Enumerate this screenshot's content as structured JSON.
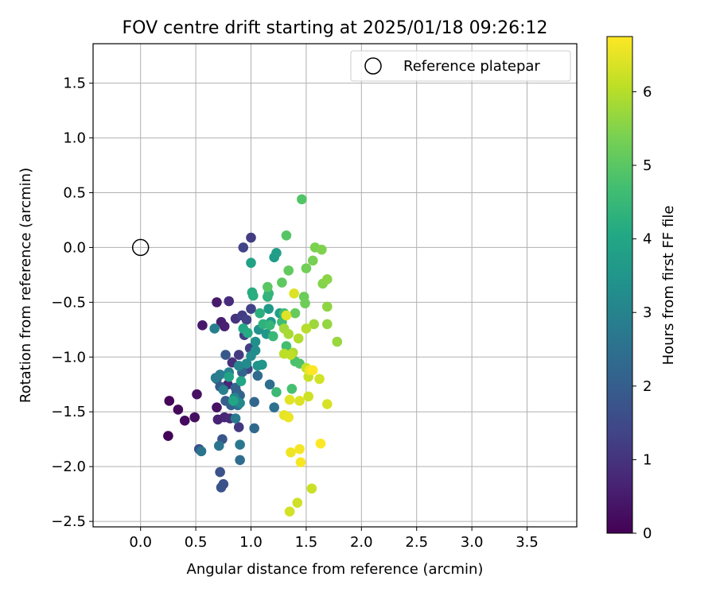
{
  "chart_data": {
    "type": "scatter",
    "title": "FOV centre drift starting at 2025/01/18 09:26:12",
    "xlabel": "Angular distance from reference (arcmin)",
    "ylabel": "Rotation from reference (arcmin)",
    "colorbar_label": "Hours from first FF file",
    "xlim": [
      -0.43,
      3.95
    ],
    "ylim": [
      -2.55,
      1.86
    ],
    "x_ticks": [
      0.0,
      0.5,
      1.0,
      1.5,
      2.0,
      2.5,
      3.0,
      3.5
    ],
    "x_tick_labels": [
      "0.0",
      "0.5",
      "1.0",
      "1.5",
      "2.0",
      "2.5",
      "3.0",
      "3.5"
    ],
    "y_ticks": [
      1.5,
      1.0,
      0.5,
      0.0,
      -0.5,
      -1.0,
      -1.5,
      -2.0,
      -2.5
    ],
    "y_tick_labels": [
      "1.5",
      "1.0",
      "0.5",
      "0.0",
      "−0.5",
      "−1.0",
      "−1.5",
      "−2.0",
      "−2.5"
    ],
    "colorbar_ticks": [
      0,
      1,
      2,
      3,
      4,
      5,
      6
    ],
    "colorbar_tick_labels": [
      "0",
      "1",
      "2",
      "3",
      "4",
      "5",
      "6"
    ],
    "color_range": [
      0,
      6.75
    ],
    "colormap": "viridis",
    "grid": true,
    "legend": {
      "placement": "top-right",
      "entries": [
        "Reference platepar"
      ]
    },
    "reference": {
      "x": 0.0,
      "y": 0.0
    },
    "points": [
      {
        "x": 0.25,
        "y": -1.72,
        "t": 0.05
      },
      {
        "x": 0.26,
        "y": -1.4,
        "t": 0.1
      },
      {
        "x": 0.34,
        "y": -1.48,
        "t": 0.15
      },
      {
        "x": 0.4,
        "y": -1.58,
        "t": 0.2
      },
      {
        "x": 0.49,
        "y": -1.55,
        "t": 0.25
      },
      {
        "x": 0.51,
        "y": -1.34,
        "t": 0.3
      },
      {
        "x": 0.69,
        "y": -1.46,
        "t": 0.35
      },
      {
        "x": 0.56,
        "y": -0.71,
        "t": 0.45
      },
      {
        "x": 0.69,
        "y": -0.5,
        "t": 0.5
      },
      {
        "x": 0.73,
        "y": -0.68,
        "t": 0.55
      },
      {
        "x": 0.76,
        "y": -0.72,
        "t": 0.6
      },
      {
        "x": 0.7,
        "y": -1.57,
        "t": 0.65
      },
      {
        "x": 0.76,
        "y": -1.55,
        "t": 0.7
      },
      {
        "x": 0.79,
        "y": -1.25,
        "t": 0.75
      },
      {
        "x": 0.81,
        "y": -1.56,
        "t": 0.8
      },
      {
        "x": 0.8,
        "y": -0.49,
        "t": 0.85
      },
      {
        "x": 0.83,
        "y": -1.05,
        "t": 0.9
      },
      {
        "x": 0.86,
        "y": -0.65,
        "t": 1.0
      },
      {
        "x": 0.87,
        "y": -1.32,
        "t": 1.05
      },
      {
        "x": 0.89,
        "y": -1.64,
        "t": 1.1
      },
      {
        "x": 0.89,
        "y": -0.98,
        "t": 1.15
      },
      {
        "x": 0.92,
        "y": -0.62,
        "t": 1.2
      },
      {
        "x": 0.94,
        "y": -0.8,
        "t": 1.25
      },
      {
        "x": 0.96,
        "y": -0.66,
        "t": 1.3
      },
      {
        "x": 0.93,
        "y": 0.0,
        "t": 1.35
      },
      {
        "x": 1.0,
        "y": 0.09,
        "t": 1.2
      },
      {
        "x": 0.99,
        "y": -0.92,
        "t": 1.25
      },
      {
        "x": 1.0,
        "y": -0.56,
        "t": 1.3
      },
      {
        "x": 0.97,
        "y": -1.11,
        "t": 1.4
      },
      {
        "x": 0.72,
        "y": -2.05,
        "t": 1.7
      },
      {
        "x": 0.73,
        "y": -2.19,
        "t": 1.75
      },
      {
        "x": 0.75,
        "y": -2.16,
        "t": 1.7
      },
      {
        "x": 0.53,
        "y": -1.84,
        "t": 1.65
      },
      {
        "x": 0.74,
        "y": -1.75,
        "t": 1.8
      },
      {
        "x": 0.77,
        "y": -0.98,
        "t": 1.85
      },
      {
        "x": 0.72,
        "y": -1.27,
        "t": 1.9
      },
      {
        "x": 0.69,
        "y": -1.2,
        "t": 1.95
      },
      {
        "x": 0.77,
        "y": -1.4,
        "t": 2.0
      },
      {
        "x": 0.82,
        "y": -1.44,
        "t": 2.05
      },
      {
        "x": 0.86,
        "y": -1.28,
        "t": 2.1
      },
      {
        "x": 0.9,
        "y": -1.35,
        "t": 2.15
      },
      {
        "x": 0.92,
        "y": -1.14,
        "t": 2.2
      },
      {
        "x": 1.03,
        "y": -1.41,
        "t": 2.25
      },
      {
        "x": 1.03,
        "y": -1.65,
        "t": 2.3
      },
      {
        "x": 1.06,
        "y": -1.17,
        "t": 2.35
      },
      {
        "x": 0.9,
        "y": -1.94,
        "t": 2.4
      },
      {
        "x": 1.17,
        "y": -1.25,
        "t": 2.45
      },
      {
        "x": 1.21,
        "y": -1.46,
        "t": 2.5
      },
      {
        "x": 0.88,
        "y": -1.44,
        "t": 2.55
      },
      {
        "x": 0.55,
        "y": -1.86,
        "t": 2.6
      },
      {
        "x": 0.71,
        "y": -1.81,
        "t": 2.65
      },
      {
        "x": 0.9,
        "y": -1.8,
        "t": 2.7
      },
      {
        "x": 0.86,
        "y": -1.56,
        "t": 2.75
      },
      {
        "x": 0.68,
        "y": -1.19,
        "t": 2.8
      },
      {
        "x": 0.72,
        "y": -1.16,
        "t": 2.85
      },
      {
        "x": 0.67,
        "y": -0.74,
        "t": 2.9
      },
      {
        "x": 0.75,
        "y": -1.3,
        "t": 2.95
      },
      {
        "x": 0.8,
        "y": -1.14,
        "t": 3.0
      },
      {
        "x": 0.85,
        "y": -1.37,
        "t": 3.05
      },
      {
        "x": 0.89,
        "y": -1.08,
        "t": 3.1
      },
      {
        "x": 0.9,
        "y": -1.42,
        "t": 3.15
      },
      {
        "x": 0.96,
        "y": -1.06,
        "t": 3.2
      },
      {
        "x": 1.0,
        "y": -0.99,
        "t": 3.25
      },
      {
        "x": 1.04,
        "y": -0.94,
        "t": 3.3
      },
      {
        "x": 1.04,
        "y": -0.86,
        "t": 3.35
      },
      {
        "x": 1.07,
        "y": -0.75,
        "t": 3.4
      },
      {
        "x": 1.06,
        "y": -1.08,
        "t": 3.45
      },
      {
        "x": 1.1,
        "y": -1.07,
        "t": 3.5
      },
      {
        "x": 1.14,
        "y": -0.79,
        "t": 3.55
      },
      {
        "x": 1.16,
        "y": -0.56,
        "t": 3.6
      },
      {
        "x": 1.18,
        "y": -0.68,
        "t": 3.65
      },
      {
        "x": 1.21,
        "y": -0.09,
        "t": 3.7
      },
      {
        "x": 1.23,
        "y": -0.05,
        "t": 3.75
      },
      {
        "x": 1.26,
        "y": -0.6,
        "t": 3.8
      },
      {
        "x": 1.0,
        "y": -0.14,
        "t": 3.85
      },
      {
        "x": 0.8,
        "y": -1.18,
        "t": 3.9
      },
      {
        "x": 0.84,
        "y": -1.4,
        "t": 3.95
      },
      {
        "x": 0.91,
        "y": -1.22,
        "t": 4.0
      },
      {
        "x": 0.93,
        "y": -0.74,
        "t": 4.05
      },
      {
        "x": 0.97,
        "y": -0.78,
        "t": 4.1
      },
      {
        "x": 1.01,
        "y": -0.41,
        "t": 4.15
      },
      {
        "x": 1.02,
        "y": -0.44,
        "t": 4.2
      },
      {
        "x": 1.08,
        "y": -0.6,
        "t": 4.25
      },
      {
        "x": 1.11,
        "y": -0.7,
        "t": 4.3
      },
      {
        "x": 1.15,
        "y": -0.45,
        "t": 4.35
      },
      {
        "x": 1.16,
        "y": -0.42,
        "t": 4.4
      },
      {
        "x": 1.17,
        "y": -0.71,
        "t": 4.45
      },
      {
        "x": 1.2,
        "y": -0.81,
        "t": 4.5
      },
      {
        "x": 1.23,
        "y": -1.32,
        "t": 4.55
      },
      {
        "x": 1.28,
        "y": -0.68,
        "t": 4.6
      },
      {
        "x": 1.3,
        "y": -0.6,
        "t": 4.65
      },
      {
        "x": 1.32,
        "y": -0.9,
        "t": 4.7
      },
      {
        "x": 1.37,
        "y": -1.29,
        "t": 4.75
      },
      {
        "x": 1.4,
        "y": -1.04,
        "t": 4.8
      },
      {
        "x": 1.44,
        "y": -1.06,
        "t": 4.85
      },
      {
        "x": 1.46,
        "y": 0.44,
        "t": 4.9
      },
      {
        "x": 1.32,
        "y": 0.11,
        "t": 4.95
      },
      {
        "x": 1.15,
        "y": -0.36,
        "t": 5.0
      },
      {
        "x": 1.28,
        "y": -0.32,
        "t": 5.05
      },
      {
        "x": 1.34,
        "y": -0.21,
        "t": 5.1
      },
      {
        "x": 1.4,
        "y": -0.6,
        "t": 5.15
      },
      {
        "x": 1.48,
        "y": -0.45,
        "t": 5.2
      },
      {
        "x": 1.49,
        "y": -0.51,
        "t": 5.25
      },
      {
        "x": 1.5,
        "y": -0.19,
        "t": 5.3
      },
      {
        "x": 1.56,
        "y": -0.12,
        "t": 5.35
      },
      {
        "x": 1.58,
        "y": 0.0,
        "t": 5.4
      },
      {
        "x": 1.64,
        "y": -0.02,
        "t": 5.45
      },
      {
        "x": 1.65,
        "y": -0.33,
        "t": 5.5
      },
      {
        "x": 1.69,
        "y": -0.29,
        "t": 5.55
      },
      {
        "x": 1.69,
        "y": -0.54,
        "t": 5.6
      },
      {
        "x": 1.69,
        "y": -0.7,
        "t": 5.65
      },
      {
        "x": 1.78,
        "y": -0.86,
        "t": 5.7
      },
      {
        "x": 1.57,
        "y": -0.7,
        "t": 5.75
      },
      {
        "x": 1.3,
        "y": -0.74,
        "t": 5.8
      },
      {
        "x": 1.34,
        "y": -0.79,
        "t": 5.85
      },
      {
        "x": 1.38,
        "y": -0.96,
        "t": 5.9
      },
      {
        "x": 1.43,
        "y": -0.83,
        "t": 5.95
      },
      {
        "x": 1.5,
        "y": -0.74,
        "t": 6.0
      },
      {
        "x": 1.3,
        "y": -0.97,
        "t": 6.05
      },
      {
        "x": 1.36,
        "y": -0.98,
        "t": 6.1
      },
      {
        "x": 1.5,
        "y": -1.1,
        "t": 6.15
      },
      {
        "x": 1.52,
        "y": -1.18,
        "t": 6.2
      },
      {
        "x": 1.52,
        "y": -1.36,
        "t": 6.25
      },
      {
        "x": 1.62,
        "y": -1.2,
        "t": 6.3
      },
      {
        "x": 1.69,
        "y": -1.43,
        "t": 6.35
      },
      {
        "x": 1.44,
        "y": -1.4,
        "t": 6.4
      },
      {
        "x": 1.35,
        "y": -1.39,
        "t": 6.45
      },
      {
        "x": 1.3,
        "y": -1.53,
        "t": 6.5
      },
      {
        "x": 1.34,
        "y": -1.55,
        "t": 6.55
      },
      {
        "x": 1.36,
        "y": -1.87,
        "t": 6.6
      },
      {
        "x": 1.44,
        "y": -1.84,
        "t": 6.65
      },
      {
        "x": 1.45,
        "y": -1.96,
        "t": 6.7
      },
      {
        "x": 1.63,
        "y": -1.79,
        "t": 6.75
      },
      {
        "x": 1.55,
        "y": -2.2,
        "t": 6.2
      },
      {
        "x": 1.42,
        "y": -2.33,
        "t": 6.25
      },
      {
        "x": 1.35,
        "y": -2.41,
        "t": 6.3
      },
      {
        "x": 1.39,
        "y": -0.42,
        "t": 6.4
      },
      {
        "x": 1.32,
        "y": -0.62,
        "t": 6.45
      },
      {
        "x": 1.53,
        "y": -1.12,
        "t": 6.6
      },
      {
        "x": 1.56,
        "y": -1.12,
        "t": 6.75
      }
    ]
  }
}
